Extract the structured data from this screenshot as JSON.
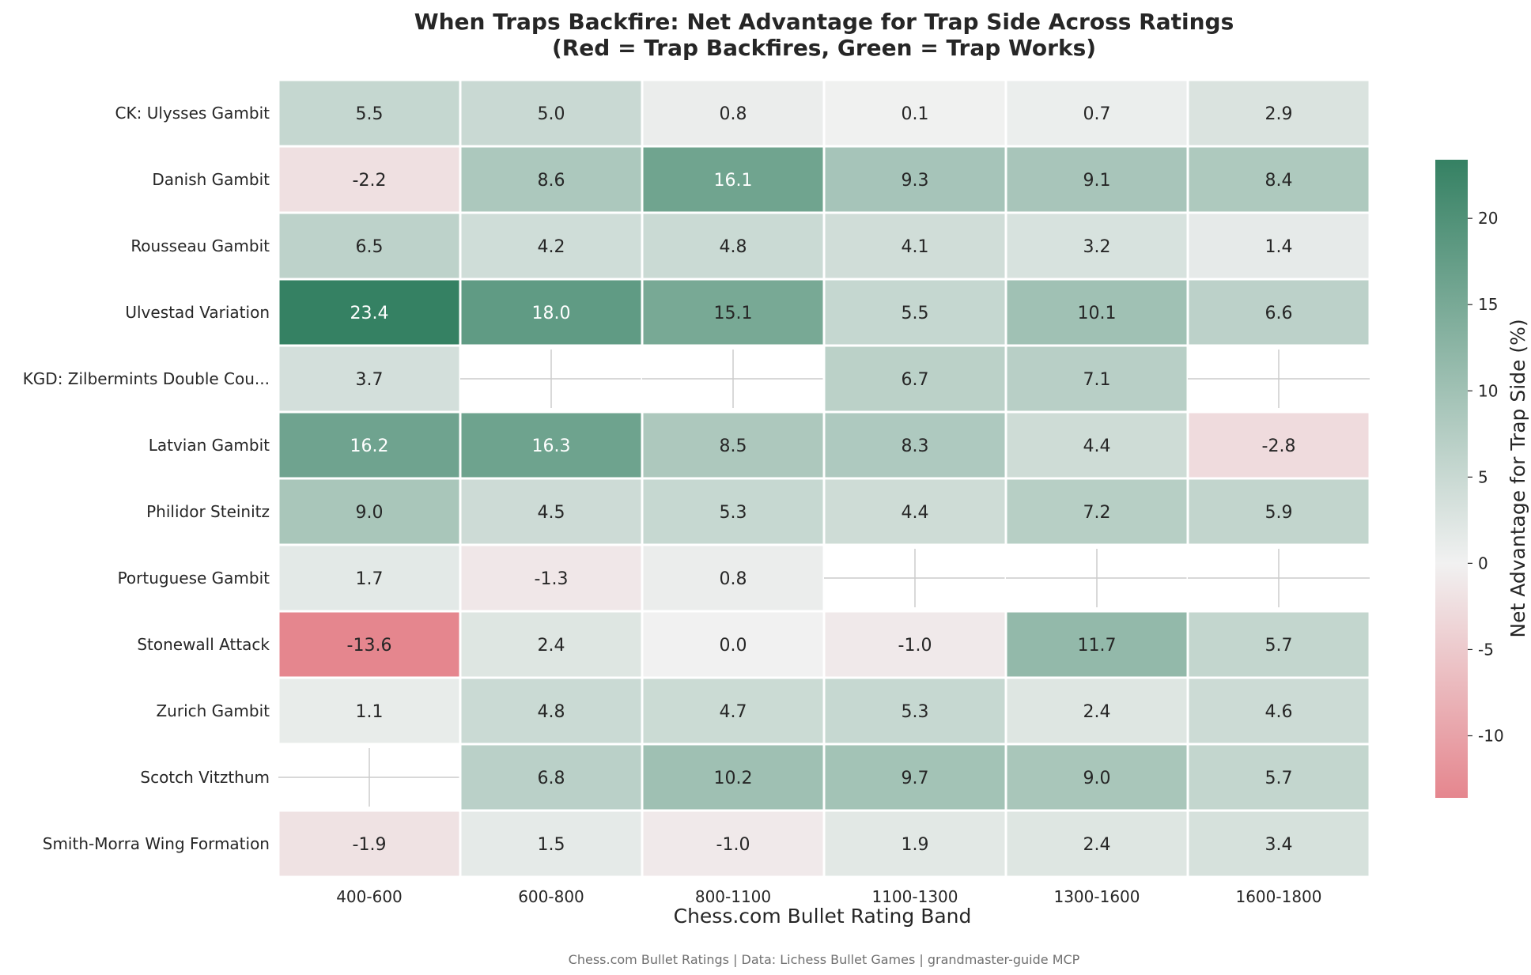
{
  "chart_data": {
    "type": "heatmap",
    "title_line1": "When Traps Backfire: Net Advantage for Trap Side Across Ratings",
    "title_line2": "(Red = Trap Backfires, Green = Trap Works)",
    "xlabel": "Chess.com Bullet Rating Band",
    "colorbar_label": "Net Advantage for Trap Side (%)",
    "footer": "Chess.com Bullet Ratings | Data: Lichess Bullet Games | grandmaster-guide MCP",
    "x_categories": [
      "400-600",
      "600-800",
      "800-1100",
      "1100-1300",
      "1300-1600",
      "1600-1800"
    ],
    "y_categories": [
      "CK: Ulysses Gambit",
      "Danish Gambit",
      "Rousseau Gambit",
      "Ulvestad Variation",
      "KGD: Zilbermints Double Cou...",
      "Latvian Gambit",
      "Philidor Steinitz",
      "Portuguese Gambit",
      "Stonewall Attack",
      "Zurich Gambit",
      "Scotch Vitzthum",
      "Smith-Morra Wing Formation"
    ],
    "values": [
      [
        5.5,
        5.0,
        0.8,
        0.1,
        0.7,
        2.9
      ],
      [
        -2.2,
        8.6,
        16.1,
        9.3,
        9.1,
        8.4
      ],
      [
        6.5,
        4.2,
        4.8,
        4.1,
        3.2,
        1.4
      ],
      [
        23.4,
        18.0,
        15.1,
        5.5,
        10.1,
        6.6
      ],
      [
        3.7,
        null,
        null,
        6.7,
        7.1,
        null
      ],
      [
        16.2,
        16.3,
        8.5,
        8.3,
        4.4,
        -2.8
      ],
      [
        9.0,
        4.5,
        5.3,
        4.4,
        7.2,
        5.9
      ],
      [
        1.7,
        -1.3,
        0.8,
        null,
        null,
        null
      ],
      [
        -13.6,
        2.4,
        0.0,
        -1.0,
        11.7,
        5.7
      ],
      [
        1.1,
        4.8,
        4.7,
        5.3,
        2.4,
        4.6
      ],
      [
        null,
        6.8,
        10.2,
        9.7,
        9.0,
        5.7
      ],
      [
        -1.9,
        1.5,
        -1.0,
        1.9,
        2.4,
        3.4
      ]
    ],
    "vmin": -13.6,
    "vmax": 23.4,
    "colorbar_ticks": [
      -10,
      -5,
      0,
      5,
      10,
      15,
      20
    ],
    "colormap": {
      "negative": "#e5868e",
      "center": "#f1f1f1",
      "positive": "#358163"
    },
    "missing_cells_marker": "crosshair lines on blank cell"
  }
}
